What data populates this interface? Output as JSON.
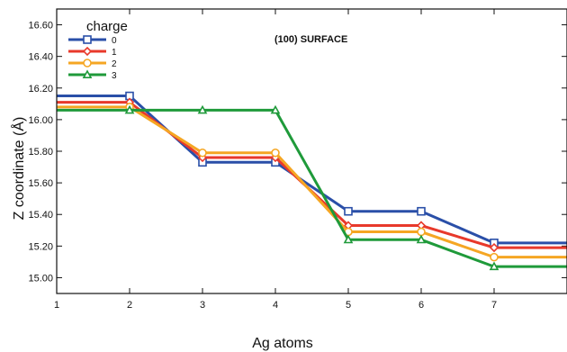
{
  "chart_data": {
    "type": "line",
    "xlabel": "Ag atoms",
    "ylabel": "Z coordinate (Å)",
    "annotation": "(100) SURFACE",
    "legend_title": "charge",
    "legend_position": "top-left",
    "grid": false,
    "xlim": [
      1,
      8
    ],
    "ylim": [
      14.9,
      16.7
    ],
    "x_ticks": [
      "1",
      "2",
      "3",
      "4",
      "5",
      "6",
      "7"
    ],
    "y_ticks": [
      "15.00",
      "15.20",
      "15.40",
      "15.60",
      "15.80",
      "16.00",
      "16.20",
      "16.40",
      "16.60"
    ],
    "x": [
      1,
      2,
      3,
      4,
      5,
      6,
      7,
      8
    ],
    "series": [
      {
        "name": "0",
        "color": "#2a4fa8",
        "marker": "square",
        "values": [
          16.15,
          16.15,
          15.73,
          15.73,
          15.42,
          15.42,
          15.22,
          15.22
        ]
      },
      {
        "name": "1",
        "color": "#e8392b",
        "marker": "diamond",
        "values": [
          16.11,
          16.11,
          15.76,
          15.76,
          15.33,
          15.33,
          15.19,
          15.19
        ]
      },
      {
        "name": "2",
        "color": "#f5a623",
        "marker": "circle",
        "values": [
          16.08,
          16.08,
          15.79,
          15.79,
          15.29,
          15.29,
          15.13,
          15.13
        ]
      },
      {
        "name": "3",
        "color": "#1f9a3a",
        "marker": "triangle",
        "values": [
          16.06,
          16.06,
          16.06,
          16.06,
          15.24,
          15.24,
          15.07,
          15.07
        ]
      }
    ]
  }
}
